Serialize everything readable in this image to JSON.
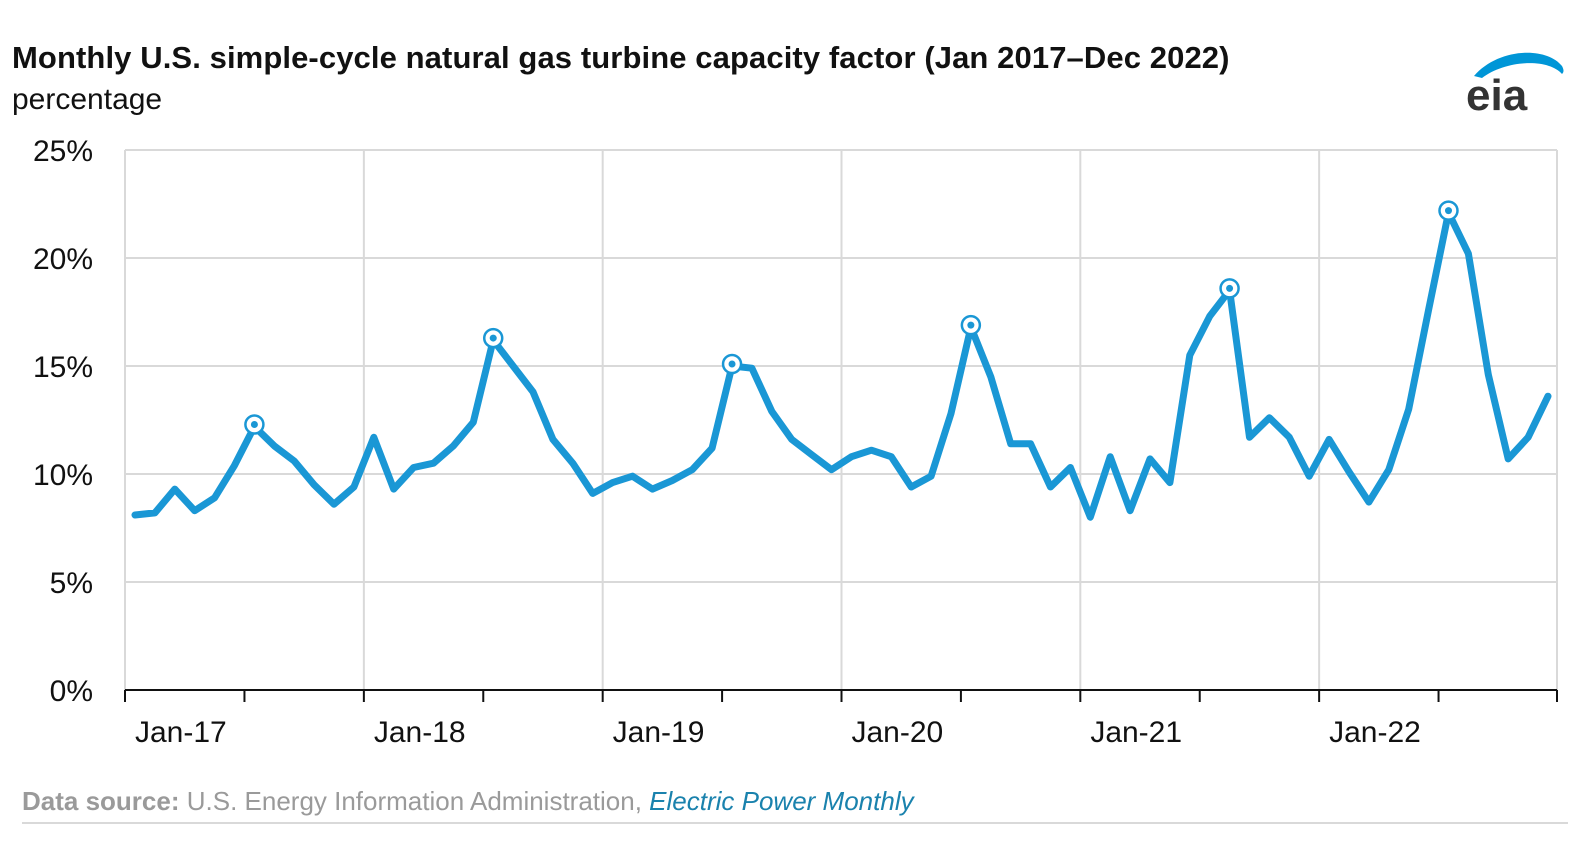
{
  "header": {
    "title": "Monthly U.S. simple-cycle natural gas turbine capacity factor (Jan 2017–Dec 2022)",
    "subtitle": "percentage"
  },
  "logo": {
    "text": "eia",
    "icon": "eia-logo",
    "arc_color": "#0096d7",
    "text_color": "#333333"
  },
  "footer": {
    "source_label": "Data source:",
    "source_text": "U.S. Energy Information Administration,",
    "source_publication": "Electric Power Monthly"
  },
  "chart_data": {
    "type": "line",
    "title": "Monthly U.S. simple-cycle natural gas turbine capacity factor (Jan 2017–Dec 2022)",
    "ylabel": "percentage",
    "xlabel": "",
    "ylim": [
      0,
      25
    ],
    "y_ticks": [
      0,
      5,
      10,
      15,
      20,
      25
    ],
    "y_tick_labels": [
      "0%",
      "5%",
      "10%",
      "15%",
      "20%",
      "25%"
    ],
    "x_tick_labels": [
      "Jan-17",
      "Jan-18",
      "Jan-19",
      "Jan-20",
      "Jan-21",
      "Jan-22"
    ],
    "grid": true,
    "line_color": "#1a97d5",
    "series": [
      {
        "values": [
          8.1,
          8.2,
          9.3,
          8.3,
          8.9,
          10.4,
          12.2,
          11.3,
          10.6,
          9.5,
          8.6,
          9.4,
          11.7,
          9.3,
          10.3,
          10.5,
          11.3,
          12.4,
          16.2,
          15.0,
          13.8,
          11.6,
          10.5,
          9.1,
          9.6,
          9.9,
          9.3,
          9.7,
          10.2,
          11.2,
          15.0,
          14.9,
          12.9,
          11.6,
          10.9,
          10.2,
          10.8,
          11.1,
          10.8,
          9.4,
          9.9,
          12.8,
          16.8,
          14.5,
          11.4,
          11.4,
          9.4,
          10.3,
          8.0,
          10.8,
          8.3,
          10.7,
          9.6,
          15.5,
          17.3,
          18.5,
          11.7,
          12.6,
          11.7,
          9.9,
          11.6,
          10.1,
          8.7,
          10.2,
          13.0,
          17.6,
          22.1,
          20.2,
          14.6,
          10.7,
          11.7,
          13.6
        ],
        "peak_markers": [
          6,
          18,
          30,
          42,
          55,
          66
        ]
      }
    ]
  }
}
